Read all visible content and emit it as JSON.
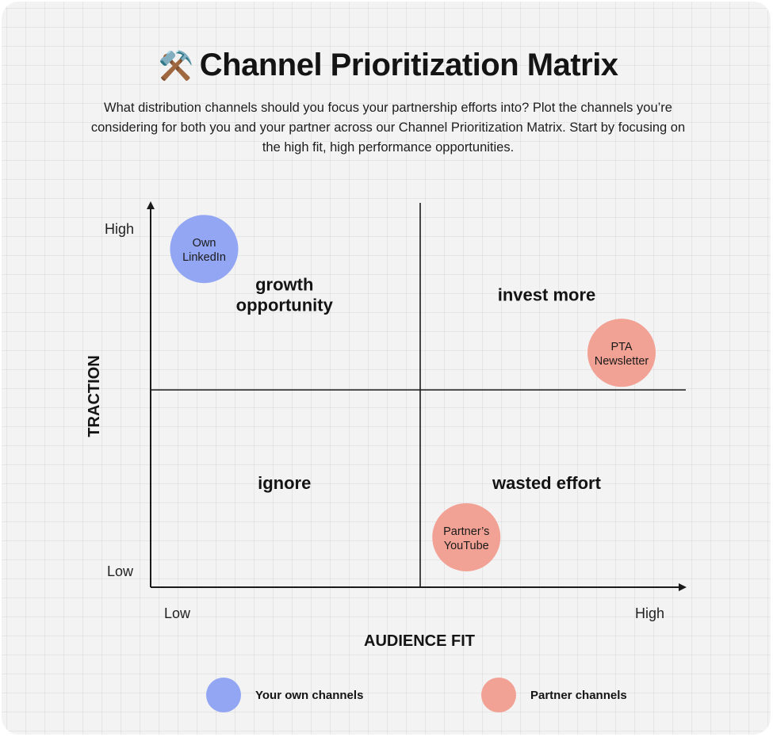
{
  "header": {
    "emoji": "⚒️",
    "title": "Channel Prioritization Matrix",
    "subtitle": "What distribution channels should you focus your partnership efforts into? Plot the channels you’re considering for both you and your partner across our Channel Prioritization Matrix. Start by focusing on the high fit, high performance opportunities."
  },
  "colors": {
    "own": "#93a6f4",
    "partner": "#f2a294",
    "axis": "#1a1a1a"
  },
  "chart_data": {
    "type": "scatter",
    "title": "Channel Prioritization Matrix",
    "xlabel": "AUDIENCE FIT",
    "ylabel": "TRACTION",
    "x_ticks": [
      "Low",
      "High"
    ],
    "y_ticks": [
      "High",
      "Low"
    ],
    "xlim": [
      0,
      1
    ],
    "ylim": [
      0,
      1
    ],
    "quadrants": [
      {
        "name": "growth opportunity",
        "x": 0.25,
        "y": 0.76
      },
      {
        "name": "invest more",
        "x": 0.74,
        "y": 0.76
      },
      {
        "name": "ignore",
        "x": 0.25,
        "y": 0.27
      },
      {
        "name": "wasted effort",
        "x": 0.74,
        "y": 0.27
      }
    ],
    "points": [
      {
        "label": [
          "Own",
          "LinkedIn"
        ],
        "x": 0.1,
        "y": 0.88,
        "group": "own"
      },
      {
        "label": [
          "PTA",
          "Newsletter"
        ],
        "x": 0.88,
        "y": 0.61,
        "group": "partner"
      },
      {
        "label": [
          "Partner’s",
          "YouTube"
        ],
        "x": 0.59,
        "y": 0.13,
        "group": "partner"
      }
    ]
  },
  "legend": [
    {
      "label": "Your own channels",
      "group": "own"
    },
    {
      "label": "Partner channels",
      "group": "partner"
    }
  ]
}
